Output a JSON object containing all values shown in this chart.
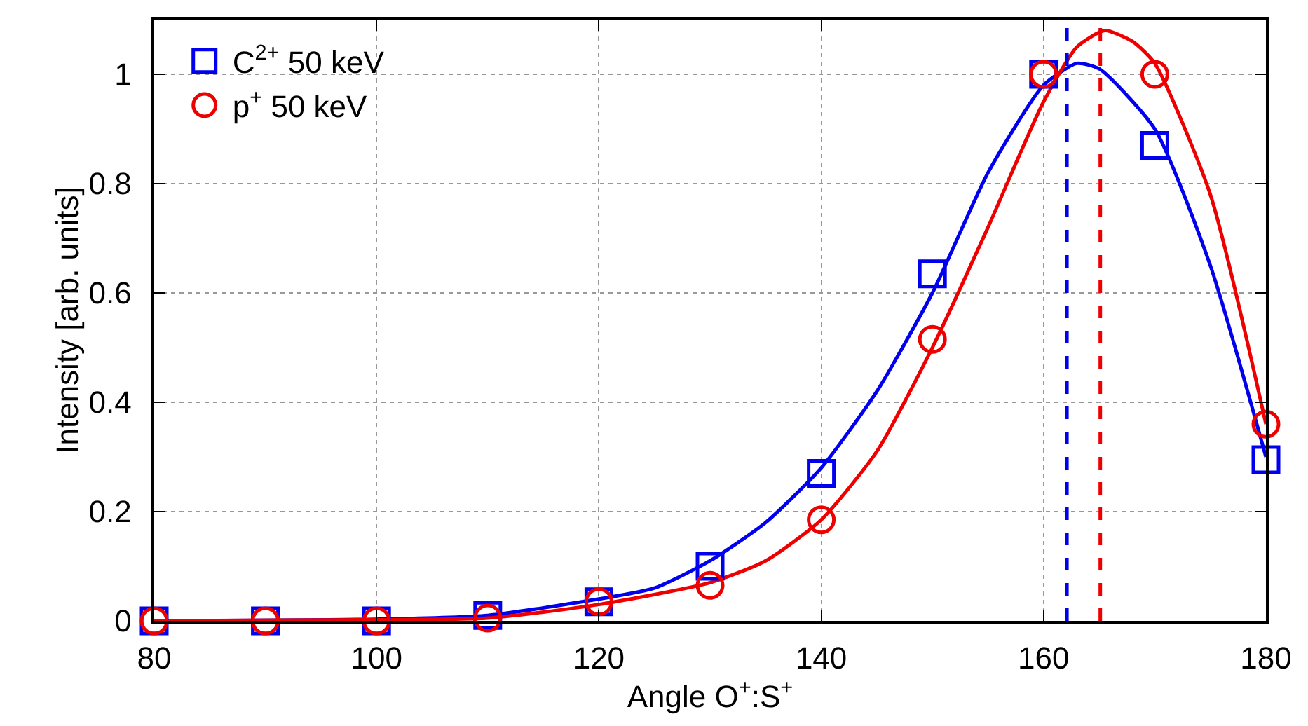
{
  "chart_data": {
    "type": "scatter",
    "xlabel": "Angle O$^{+}$:S$^{+}$",
    "ylabel": "Intensity [arb. units]",
    "xlim": [
      80,
      180
    ],
    "xticks": [
      80,
      100,
      120,
      140,
      160,
      180
    ],
    "ylim": [
      0,
      1.1
    ],
    "yticks": [
      0,
      0.2,
      0.4,
      0.6,
      0.8,
      1
    ],
    "grid": true,
    "legend": "top left",
    "series": [
      {
        "type": "line",
        "color": "#0000ee",
        "line_style": "solid",
        "marker": "none",
        "x": [
          80,
          100,
          110,
          120,
          125,
          130,
          135,
          140,
          145,
          150,
          155,
          160,
          163,
          165,
          170,
          175,
          180
        ],
        "values": [
          0,
          0.003,
          0.01,
          0.04,
          0.06,
          0.11,
          0.18,
          0.28,
          0.42,
          0.6,
          0.82,
          0.98,
          1.02,
          1.01,
          0.9,
          0.65,
          0.3
        ]
      },
      {
        "type": "line",
        "color": "#ee0000",
        "line_style": "solid",
        "marker": "none",
        "x": [
          80,
          100,
          110,
          120,
          130,
          135,
          140,
          145,
          150,
          155,
          160,
          163,
          165.5,
          168,
          170,
          175,
          180
        ],
        "values": [
          0,
          0.002,
          0.005,
          0.03,
          0.07,
          0.11,
          0.185,
          0.31,
          0.5,
          0.72,
          0.95,
          1.05,
          1.08,
          1.06,
          1.02,
          0.78,
          0.36
        ]
      },
      {
        "name": "C$^{2+}$ 50 keV",
        "color": "#0000ee",
        "marker": "square",
        "x": [
          80,
          90,
          100,
          110,
          120,
          130,
          140,
          150,
          160,
          170,
          180
        ],
        "values": [
          0,
          0,
          0,
          0.01,
          0.035,
          0.1,
          0.27,
          0.635,
          1.0,
          0.87,
          0.295
        ]
      },
      {
        "name": "p$^{+}$ 50 keV",
        "color": "#ee0000",
        "marker": "circle",
        "x": [
          80,
          90,
          100,
          110,
          120,
          130,
          140,
          150,
          160,
          170,
          180
        ],
        "values": [
          0,
          0,
          0,
          0.005,
          0.035,
          0.065,
          0.185,
          0.515,
          1.0,
          1.0,
          0.36
        ]
      }
    ],
    "ref_lines": [
      {
        "axis": "x",
        "value": 162.1,
        "color": "#0000ee",
        "line_style": "dashed"
      },
      {
        "axis": "x",
        "value": 165.1,
        "color": "#ee0000",
        "line_style": "dashed"
      }
    ]
  }
}
